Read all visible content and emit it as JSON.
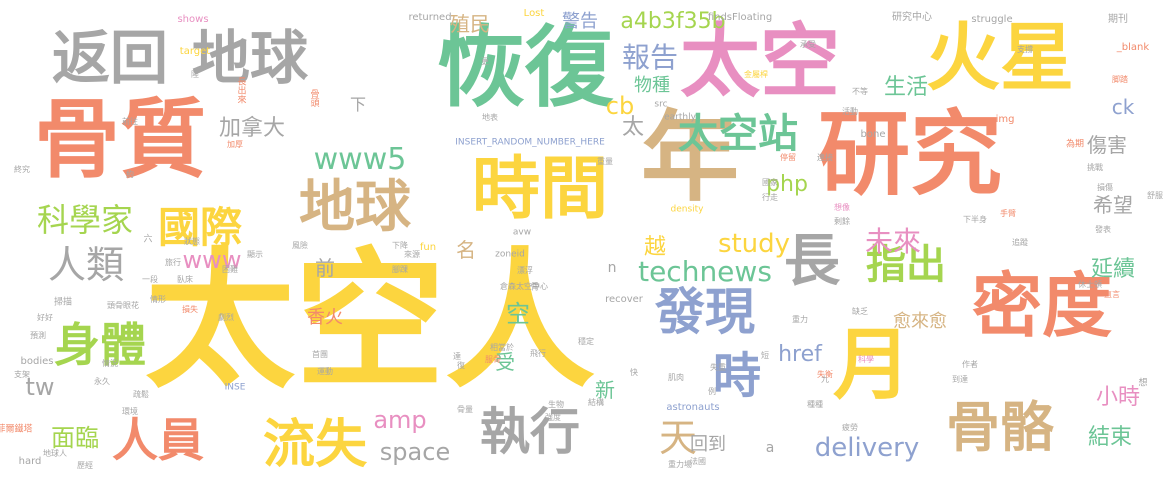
{
  "palette": {
    "coral": "#f28a6b",
    "yellow": "#fcd53f",
    "green": "#6cc596",
    "gray": "#a6a6a6",
    "tan": "#d6b483",
    "lime": "#a5d54f",
    "pink": "#e88fc1",
    "blue": "#8ea1cf"
  },
  "words": [
    {
      "text": "太空人",
      "color": "yellow"
    },
    {
      "text": "研究",
      "color": "coral"
    },
    {
      "text": "恢復",
      "color": "green"
    },
    {
      "text": "年",
      "color": "tan"
    },
    {
      "text": "太空",
      "color": "pink"
    },
    {
      "text": "骨質",
      "color": "coral"
    },
    {
      "text": "火星",
      "color": "yellow"
    },
    {
      "text": "密度",
      "color": "coral"
    },
    {
      "text": "時間",
      "color": "yellow"
    },
    {
      "text": "月",
      "color": "yellow"
    },
    {
      "text": "返回",
      "color": "gray"
    },
    {
      "text": "地球",
      "color": "gray"
    },
    {
      "text": "長",
      "color": "gray"
    },
    {
      "text": "地球",
      "color": "tan"
    },
    {
      "text": "流失",
      "color": "yellow"
    },
    {
      "text": "骨骼",
      "color": "tan"
    },
    {
      "text": "執行",
      "color": "gray"
    },
    {
      "text": "發現",
      "color": "blue"
    },
    {
      "text": "人員",
      "color": "coral"
    },
    {
      "text": "身體",
      "color": "lime"
    },
    {
      "text": "時",
      "color": "blue"
    },
    {
      "text": "國際",
      "color": "yellow"
    },
    {
      "text": "太空站",
      "color": "green"
    },
    {
      "text": "指出",
      "color": "lime"
    },
    {
      "text": "人類",
      "color": "gray"
    },
    {
      "text": "科學家",
      "color": "lime"
    },
    {
      "text": "www5",
      "color": "green"
    },
    {
      "text": "technews",
      "color": "green"
    },
    {
      "text": "delivery",
      "color": "blue"
    },
    {
      "text": "未來",
      "color": "pink"
    },
    {
      "text": "天",
      "color": "tan"
    },
    {
      "text": "space",
      "color": "gray"
    },
    {
      "text": "面臨",
      "color": "lime"
    },
    {
      "text": "study",
      "color": "yellow"
    },
    {
      "text": "報告",
      "color": "blue"
    },
    {
      "text": "a4b3f35b",
      "color": "lime"
    },
    {
      "text": "www",
      "color": "pink"
    },
    {
      "text": "加拿大",
      "color": "gray"
    },
    {
      "text": "生活",
      "color": "green"
    },
    {
      "text": "物種",
      "color": "green"
    },
    {
      "text": "tw",
      "color": "gray"
    },
    {
      "text": "amp",
      "color": "pink"
    },
    {
      "text": "結束",
      "color": "green"
    },
    {
      "text": "小時",
      "color": "pink"
    },
    {
      "text": "延續",
      "color": "green"
    },
    {
      "text": "ck",
      "color": "blue"
    },
    {
      "text": "傷害",
      "color": "gray"
    },
    {
      "text": "希望",
      "color": "gray"
    },
    {
      "text": "php",
      "color": "lime"
    },
    {
      "text": "href",
      "color": "blue"
    },
    {
      "text": "cb",
      "color": "yellow"
    },
    {
      "text": "愈來愈",
      "color": "tan"
    },
    {
      "text": "殖民",
      "color": "tan"
    },
    {
      "text": "警告",
      "color": "blue"
    },
    {
      "text": "香火",
      "color": "coral"
    },
    {
      "text": "回到",
      "color": "gray"
    },
    {
      "text": "越",
      "color": "yellow"
    },
    {
      "text": "前",
      "color": "gray"
    },
    {
      "text": "名",
      "color": "tan"
    },
    {
      "text": "空",
      "color": "green"
    },
    {
      "text": "受",
      "color": "green"
    },
    {
      "text": "太",
      "color": "gray"
    },
    {
      "text": "新",
      "color": "green"
    },
    {
      "text": "n",
      "color": "gray"
    },
    {
      "text": "a",
      "color": "gray"
    },
    {
      "text": "期刊",
      "color": "gray"
    },
    {
      "text": "研究中心",
      "color": "gray"
    },
    {
      "text": "shows",
      "color": "pink"
    },
    {
      "text": "returned",
      "color": "gray"
    },
    {
      "text": "Lost",
      "color": "yellow"
    },
    {
      "text": "findsFloating",
      "color": "gray"
    },
    {
      "text": "INSERT_RANDOM_NUMBER_HERE",
      "color": "blue"
    },
    {
      "text": "_blank",
      "color": "coral"
    },
    {
      "text": "target",
      "color": "yellow"
    },
    {
      "text": "struggle",
      "color": "gray"
    },
    {
      "text": "earthly",
      "color": "gray"
    },
    {
      "text": "density",
      "color": "yellow"
    },
    {
      "text": "bone",
      "color": "gray"
    },
    {
      "text": "img",
      "color": "coral"
    },
    {
      "text": "src",
      "color": "gray"
    },
    {
      "text": "fun",
      "color": "yellow"
    },
    {
      "text": "avw",
      "color": "gray"
    },
    {
      "text": "zoneid",
      "color": "gray"
    },
    {
      "text": "recover",
      "color": "gray"
    },
    {
      "text": "INSE",
      "color": "blue"
    },
    {
      "text": "astronauts",
      "color": "blue"
    },
    {
      "text": "bodies",
      "color": "gray"
    },
    {
      "text": "hard",
      "color": "gray"
    },
    {
      "text": "骨頭",
      "color": "coral"
    },
    {
      "text": "長出來",
      "color": "coral"
    },
    {
      "text": "前往",
      "color": "gray"
    },
    {
      "text": "加厚",
      "color": "coral"
    },
    {
      "text": "終究",
      "color": "gray"
    },
    {
      "text": "約",
      "color": "gray"
    },
    {
      "text": "陸",
      "color": "gray"
    },
    {
      "text": "更",
      "color": "gray"
    },
    {
      "text": "地表",
      "color": "gray"
    },
    {
      "text": "重量",
      "color": "gray"
    },
    {
      "text": "金屬桿",
      "color": "yellow"
    },
    {
      "text": "承受",
      "color": "gray"
    },
    {
      "text": "支撐",
      "color": "gray"
    },
    {
      "text": "脚踏",
      "color": "coral"
    },
    {
      "text": "不等",
      "color": "gray"
    },
    {
      "text": "活動",
      "color": "gray"
    },
    {
      "text": "為期",
      "color": "coral"
    },
    {
      "text": "停留",
      "color": "coral"
    },
    {
      "text": "連接",
      "color": "gray"
    },
    {
      "text": "損傷",
      "color": "gray"
    },
    {
      "text": "挑戰",
      "color": "gray"
    },
    {
      "text": "舒服",
      "color": "gray"
    },
    {
      "text": "下半身",
      "color": "gray"
    },
    {
      "text": "行走",
      "color": "gray"
    },
    {
      "text": "國家",
      "color": "gray"
    },
    {
      "text": "手臂",
      "color": "coral"
    },
    {
      "text": "剩餘",
      "color": "gray"
    },
    {
      "text": "想像",
      "color": "pink"
    },
    {
      "text": "發表",
      "color": "gray"
    },
    {
      "text": "追蹤",
      "color": "gray"
    },
    {
      "text": "直言",
      "color": "coral"
    },
    {
      "text": "休士頓",
      "color": "gray"
    },
    {
      "text": "缺乏",
      "color": "gray"
    },
    {
      "text": "重力",
      "color": "gray"
    },
    {
      "text": "飛行",
      "color": "gray"
    },
    {
      "text": "科學",
      "color": "pink"
    },
    {
      "text": "作者",
      "color": "gray"
    },
    {
      "text": "到達",
      "color": "gray"
    },
    {
      "text": "種種",
      "color": "gray"
    },
    {
      "text": "失重",
      "color": "gray"
    },
    {
      "text": "失衡",
      "color": "coral"
    },
    {
      "text": "短",
      "color": "gray"
    },
    {
      "text": "九",
      "color": "gray"
    },
    {
      "text": "例",
      "color": "gray"
    },
    {
      "text": "疲勞",
      "color": "gray"
    },
    {
      "text": "法國",
      "color": "gray"
    },
    {
      "text": "重力場",
      "color": "gray"
    },
    {
      "text": "快",
      "color": "gray"
    },
    {
      "text": "肌肉",
      "color": "gray"
    },
    {
      "text": "生物",
      "color": "gray"
    },
    {
      "text": "結構",
      "color": "gray"
    },
    {
      "text": "骨量",
      "color": "gray"
    },
    {
      "text": "強度",
      "color": "gray"
    },
    {
      "text": "復",
      "color": "gray"
    },
    {
      "text": "達",
      "color": "gray"
    },
    {
      "text": "首團",
      "color": "gray"
    },
    {
      "text": "運動",
      "color": "gray"
    },
    {
      "text": "服骨",
      "color": "coral"
    },
    {
      "text": "相當於",
      "color": "gray"
    },
    {
      "text": "穩定",
      "color": "gray"
    },
    {
      "text": "倉森太空中心",
      "color": "gray"
    },
    {
      "text": "漂浮",
      "color": "gray"
    },
    {
      "text": "下降",
      "color": "gray"
    },
    {
      "text": "腳踝",
      "color": "gray"
    },
    {
      "text": "來源",
      "color": "gray"
    },
    {
      "text": "顯示",
      "color": "gray"
    },
    {
      "text": "風險",
      "color": "gray"
    },
    {
      "text": "狀態",
      "color": "gray"
    },
    {
      "text": "旅行",
      "color": "gray"
    },
    {
      "text": "困難",
      "color": "gray"
    },
    {
      "text": "臥床",
      "color": "gray"
    },
    {
      "text": "情形",
      "color": "gray"
    },
    {
      "text": "一段",
      "color": "gray"
    },
    {
      "text": "頭骨眼花",
      "color": "gray"
    },
    {
      "text": "損失",
      "color": "coral"
    },
    {
      "text": "劇烈",
      "color": "gray"
    },
    {
      "text": "好好",
      "color": "gray"
    },
    {
      "text": "預測",
      "color": "gray"
    },
    {
      "text": "支架",
      "color": "gray"
    },
    {
      "text": "情況",
      "color": "gray"
    },
    {
      "text": "永久",
      "color": "gray"
    },
    {
      "text": "疏鬆",
      "color": "gray"
    },
    {
      "text": "環境",
      "color": "gray"
    },
    {
      "text": "地球人",
      "color": "gray"
    },
    {
      "text": "歷經",
      "color": "gray"
    },
    {
      "text": "艾菲爾鐵塔",
      "color": "coral"
    },
    {
      "text": "掃描",
      "color": "gray"
    },
    {
      "text": "六",
      "color": "gray"
    },
    {
      "text": "骨",
      "color": "gray"
    },
    {
      "text": "想",
      "color": "gray"
    },
    {
      "text": "下",
      "color": "gray"
    },
    {
      "text": "s",
      "color": "gray"
    },
    {
      "text": "+",
      "color": "gray"
    }
  ]
}
